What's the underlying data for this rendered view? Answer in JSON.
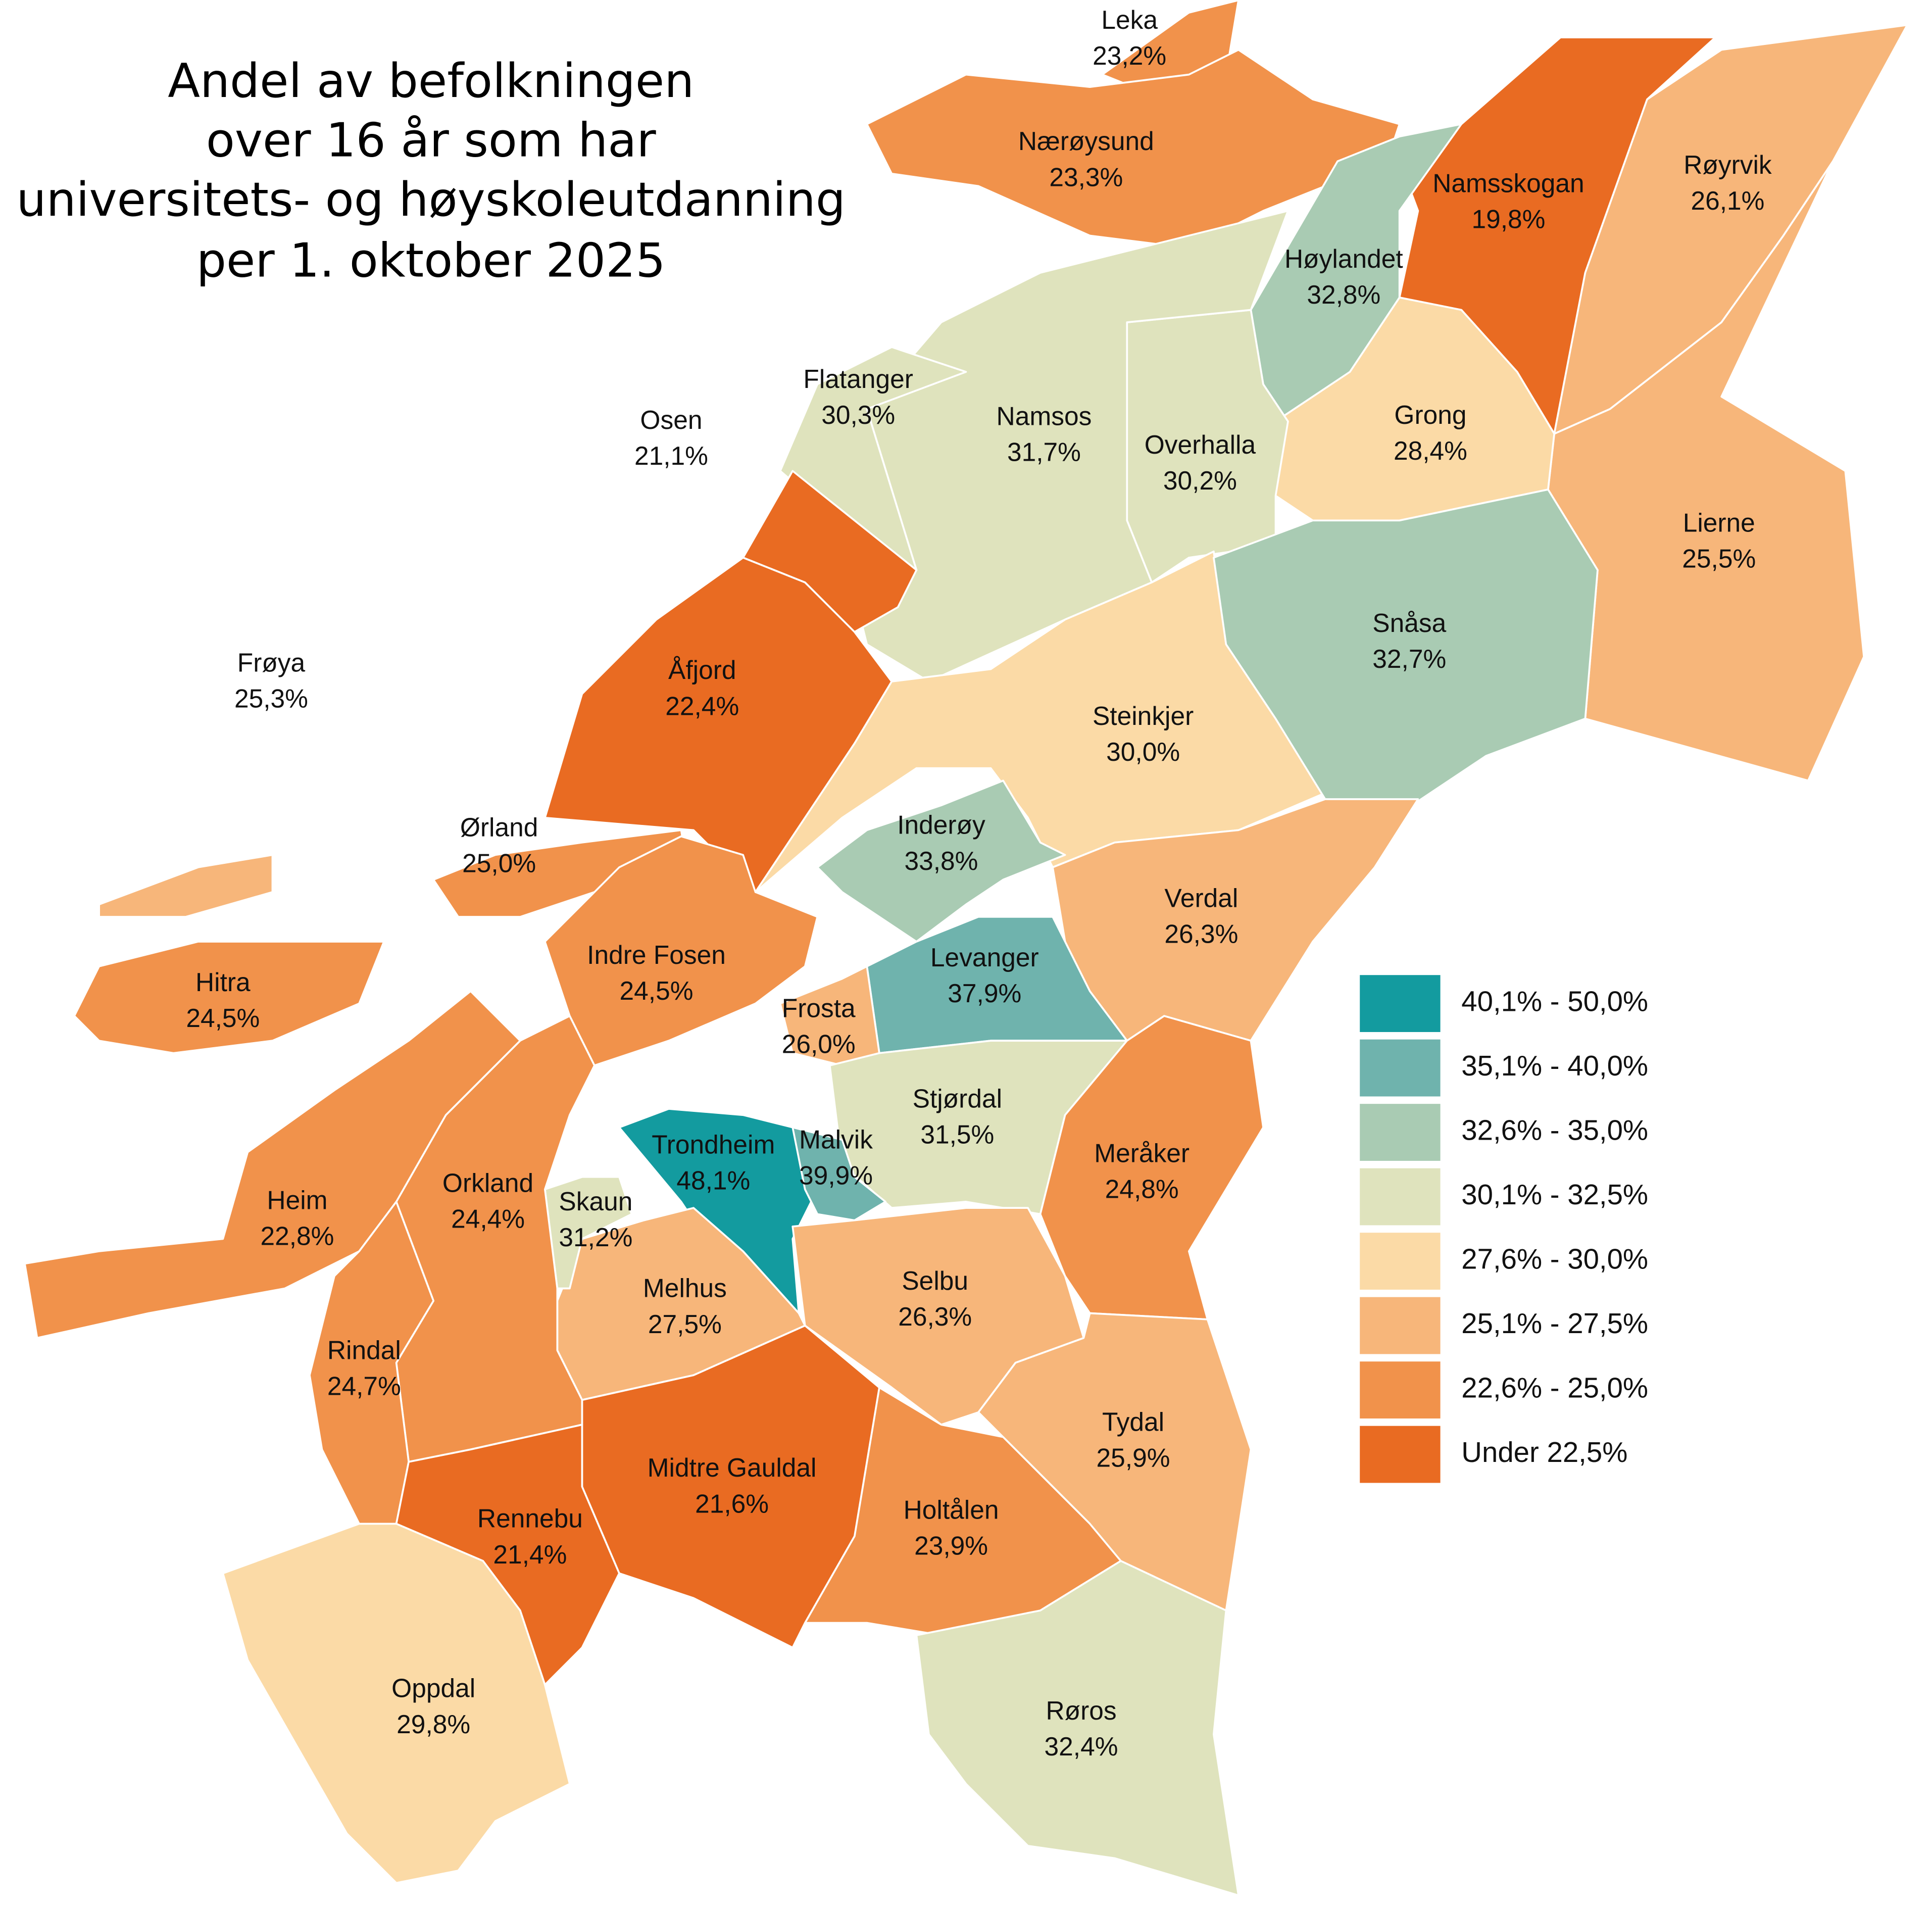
{
  "map": {
    "title": [
      "Andel av befolkningen",
      "over 16 år som har",
      "universitets- og høyskoleutdanning",
      "per 1. oktober 2025"
    ],
    "municipalities": [
      {
        "name": "Leka",
        "value": 23.2,
        "label": "23,2%"
      },
      {
        "name": "Nærøysund",
        "value": 23.3,
        "label": "23,3%"
      },
      {
        "name": "Namsskogan",
        "value": 19.8,
        "label": "19,8%"
      },
      {
        "name": "Røyrvik",
        "value": 26.1,
        "label": "26,1%"
      },
      {
        "name": "Lierne",
        "value": 25.5,
        "label": "25,5%"
      },
      {
        "name": "Høylandet",
        "value": 32.8,
        "label": "32,8%"
      },
      {
        "name": "Grong",
        "value": 28.4,
        "label": "28,4%"
      },
      {
        "name": "Overhalla",
        "value": 30.2,
        "label": "30,2%"
      },
      {
        "name": "Namsos",
        "value": 31.7,
        "label": "31,7%"
      },
      {
        "name": "Flatanger",
        "value": 30.3,
        "label": "30,3%"
      },
      {
        "name": "Osen",
        "value": 21.1,
        "label": "21,1%"
      },
      {
        "name": "Åfjord",
        "value": 22.4,
        "label": "22,4%"
      },
      {
        "name": "Frøya",
        "value": 25.3,
        "label": "25,3%"
      },
      {
        "name": "Ørland",
        "value": 25.0,
        "label": "25,0%"
      },
      {
        "name": "Hitra",
        "value": 24.5,
        "label": "24,5%"
      },
      {
        "name": "Indre Fosen",
        "value": 24.5,
        "label": "24,5%"
      },
      {
        "name": "Steinkjer",
        "value": 30.0,
        "label": "30,0%"
      },
      {
        "name": "Snåsa",
        "value": 32.7,
        "label": "32,7%"
      },
      {
        "name": "Inderøy",
        "value": 33.8,
        "label": "33,8%"
      },
      {
        "name": "Verdal",
        "value": 26.3,
        "label": "26,3%"
      },
      {
        "name": "Levanger",
        "value": 37.9,
        "label": "37,9%"
      },
      {
        "name": "Frosta",
        "value": 26.0,
        "label": "26,0%"
      },
      {
        "name": "Stjørdal",
        "value": 31.5,
        "label": "31,5%"
      },
      {
        "name": "Meråker",
        "value": 24.8,
        "label": "24,8%"
      },
      {
        "name": "Trondheim",
        "value": 48.1,
        "label": "48,1%"
      },
      {
        "name": "Malvik",
        "value": 39.9,
        "label": "39,9%"
      },
      {
        "name": "Selbu",
        "value": 26.3,
        "label": "26,3%"
      },
      {
        "name": "Tydal",
        "value": 25.9,
        "label": "25,9%"
      },
      {
        "name": "Holtålen",
        "value": 23.9,
        "label": "23,9%"
      },
      {
        "name": "Røros",
        "value": 32.4,
        "label": "32,4%"
      },
      {
        "name": "Midtre Gauldal",
        "value": 21.6,
        "label": "21,6%"
      },
      {
        "name": "Melhus",
        "value": 27.5,
        "label": "27,5%"
      },
      {
        "name": "Skaun",
        "value": 31.2,
        "label": "31,2%"
      },
      {
        "name": "Orkland",
        "value": 24.4,
        "label": "24,4%"
      },
      {
        "name": "Heim",
        "value": 22.8,
        "label": "22,8%"
      },
      {
        "name": "Rindal",
        "value": 24.7,
        "label": "24,7%"
      },
      {
        "name": "Rennebu",
        "value": 21.4,
        "label": "21,4%"
      },
      {
        "name": "Oppdal",
        "value": 29.8,
        "label": "29,8%"
      }
    ],
    "legend": [
      {
        "label": "40,1% - 50,0%",
        "min": 40.1,
        "max": 50.0,
        "color": "#139b9f"
      },
      {
        "label": "35,1% - 40,0%",
        "min": 35.1,
        "max": 40.0,
        "color": "#6fb3ad"
      },
      {
        "label": "32,6% - 35,0%",
        "min": 32.6,
        "max": 35.0,
        "color": "#a9cbb3"
      },
      {
        "label": "30,1% - 32,5%",
        "min": 30.1,
        "max": 32.5,
        "color": "#dfe3bd"
      },
      {
        "label": "27,6% - 30,0%",
        "min": 27.6,
        "max": 30.0,
        "color": "#fbdaa6"
      },
      {
        "label": "25,1% - 27,5%",
        "min": 25.1,
        "max": 27.5,
        "color": "#f7b67a"
      },
      {
        "label": "22,6% - 25,0%",
        "min": 22.6,
        "max": 25.0,
        "color": "#f1924b"
      },
      {
        "label": "Under  22,5%",
        "max": 22.5,
        "color": "#e96b22"
      }
    ]
  }
}
